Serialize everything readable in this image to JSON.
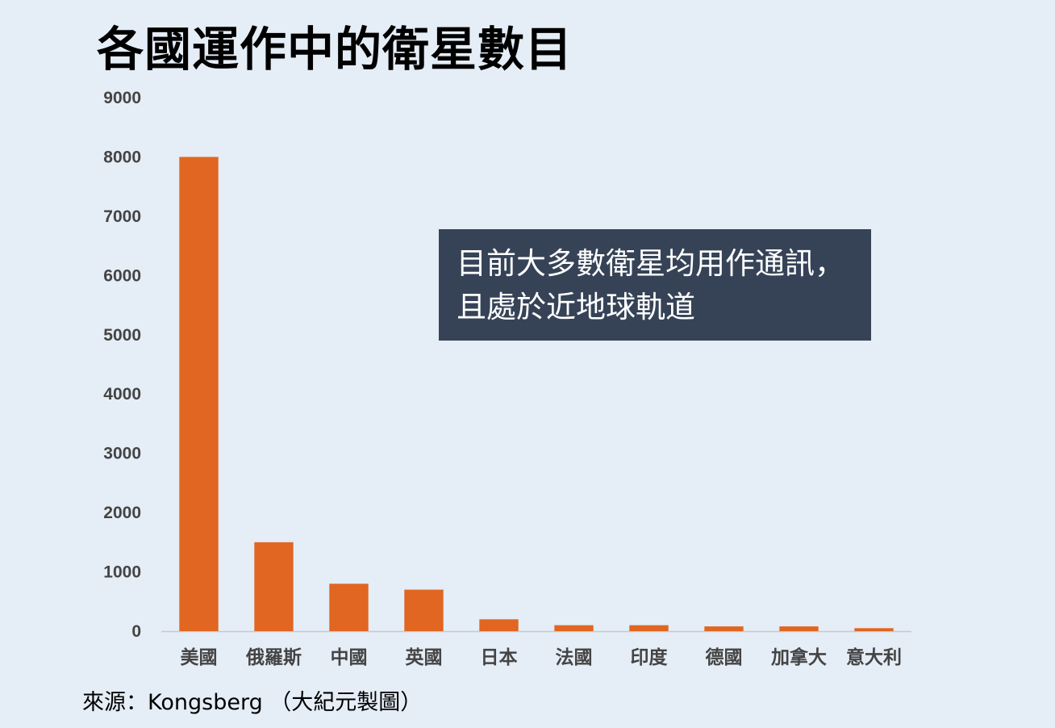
{
  "title": "各國運作中的衛星數目",
  "annotation": "目前大多數衛星均用作通訊，且處於近地球軌道",
  "source": "來源：Kongsberg （大紀元製圖）",
  "colors": {
    "bar": "#e06621",
    "background": "#e5edf6",
    "callout": "#364357",
    "axis": "#c8c8c8"
  },
  "chart_data": {
    "type": "bar",
    "title": "各國運作中的衛星數目",
    "categories": [
      "美國",
      "俄羅斯",
      "中國",
      "英國",
      "日本",
      "法國",
      "印度",
      "德國",
      "加拿大",
      "意大利"
    ],
    "values": [
      8000,
      1500,
      800,
      700,
      200,
      100,
      100,
      80,
      80,
      50
    ],
    "ylim": [
      0,
      9000
    ],
    "yticks": [
      0,
      1000,
      2000,
      3000,
      4000,
      5000,
      6000,
      7000,
      8000,
      9000
    ],
    "grid": false,
    "legend": "none"
  }
}
